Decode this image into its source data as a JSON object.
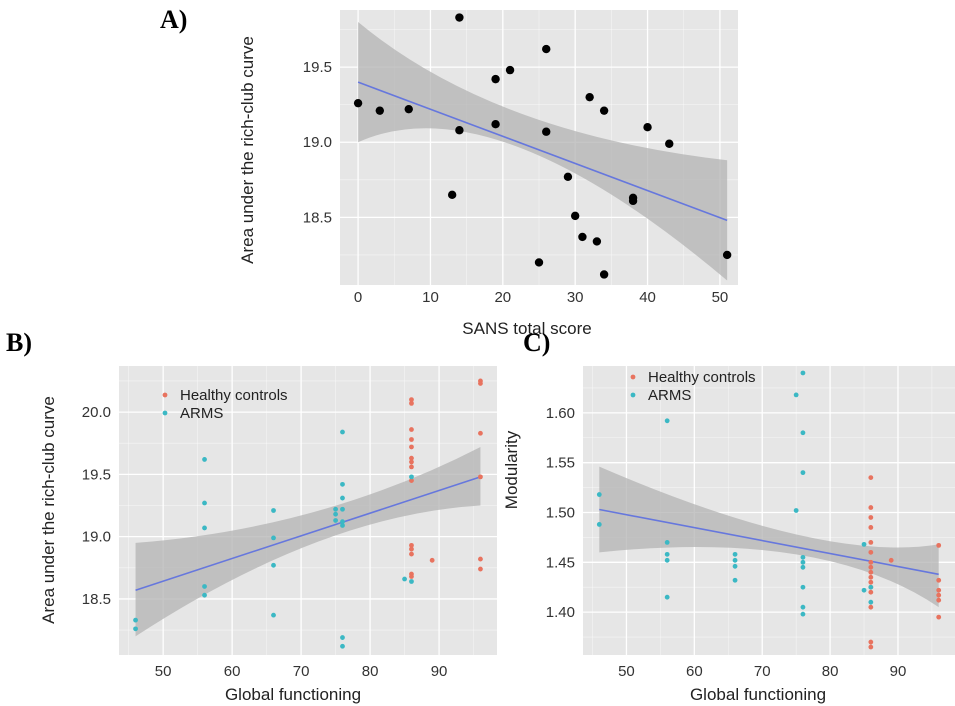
{
  "colors": {
    "panel_bg": "#e6e6e6",
    "grid": "#ffffff",
    "ribbon": "#b3b3b3",
    "fit_line": "#6677dd",
    "black_points": "#000000",
    "healthy": "#e8735f",
    "arms": "#3bb8c4"
  },
  "chart_data": [
    {
      "id": "A",
      "panel_label": "A)",
      "type": "scatter",
      "xlabel": "SANS total score",
      "ylabel": "Area under the rich-club curve",
      "xlim": [
        -2.5,
        52.5
      ],
      "ylim": [
        18.05,
        19.88
      ],
      "xticks": [
        0,
        10,
        20,
        30,
        40,
        50
      ],
      "yticks": [
        18.5,
        19.0,
        19.5
      ],
      "ytick_labels": [
        "18.5",
        "19.0",
        "19.5"
      ],
      "grid": true,
      "series": [
        {
          "color": "black",
          "points": [
            [
              0,
              19.26
            ],
            [
              3,
              19.21
            ],
            [
              7,
              19.22
            ],
            [
              13,
              18.65
            ],
            [
              14,
              19.83
            ],
            [
              14,
              19.08
            ],
            [
              19,
              19.42
            ],
            [
              19,
              19.12
            ],
            [
              21,
              19.48
            ],
            [
              25,
              18.2
            ],
            [
              26,
              19.62
            ],
            [
              26,
              19.07
            ],
            [
              29,
              18.77
            ],
            [
              30,
              18.51
            ],
            [
              31,
              18.37
            ],
            [
              32,
              19.3
            ],
            [
              33,
              18.34
            ],
            [
              34,
              19.21
            ],
            [
              34,
              18.12
            ],
            [
              38,
              18.63
            ],
            [
              38,
              18.61
            ],
            [
              40,
              19.1
            ],
            [
              43,
              18.99
            ],
            [
              51,
              18.25
            ]
          ]
        }
      ],
      "fit": {
        "x": [
          0,
          51
        ],
        "y": [
          19.4,
          18.48
        ],
        "ci": [
          [
            0,
            19.0,
            19.8
          ],
          [
            22,
            18.97,
            19.2
          ],
          [
            51,
            18.08,
            18.88
          ]
        ]
      }
    },
    {
      "id": "B",
      "panel_label": "B)",
      "type": "scatter",
      "xlabel": "Global functioning",
      "ylabel": "Area under the rich-club curve",
      "xlim": [
        43.6,
        98.4
      ],
      "ylim": [
        18.05,
        20.37
      ],
      "xticks": [
        50,
        60,
        70,
        80,
        90
      ],
      "yticks": [
        18.5,
        19.0,
        19.5,
        20.0
      ],
      "ytick_labels": [
        "18.5",
        "19.0",
        "19.5",
        "20.0"
      ],
      "grid": true,
      "legend": {
        "position": "top-left",
        "entries": [
          "Healthy controls",
          "ARMS"
        ]
      },
      "series": [
        {
          "name": "Healthy controls",
          "color": "healthy",
          "points": [
            [
              86,
              20.1
            ],
            [
              86,
              20.07
            ],
            [
              86,
              19.86
            ],
            [
              86,
              19.78
            ],
            [
              86,
              19.72
            ],
            [
              86,
              19.63
            ],
            [
              86,
              19.6
            ],
            [
              86,
              19.56
            ],
            [
              86,
              19.45
            ],
            [
              86,
              18.93
            ],
            [
              86,
              18.9
            ],
            [
              86,
              18.86
            ],
            [
              86,
              18.7
            ],
            [
              86,
              18.68
            ],
            [
              89,
              18.81
            ],
            [
              96,
              20.25
            ],
            [
              96,
              20.23
            ],
            [
              96,
              19.83
            ],
            [
              96,
              19.48
            ],
            [
              96,
              18.82
            ],
            [
              96,
              18.74
            ]
          ]
        },
        {
          "name": "ARMS",
          "color": "arms",
          "points": [
            [
              46,
              18.33
            ],
            [
              46,
              18.26
            ],
            [
              56,
              19.62
            ],
            [
              56,
              19.27
            ],
            [
              56,
              19.07
            ],
            [
              56,
              18.6
            ],
            [
              56,
              18.53
            ],
            [
              66,
              19.21
            ],
            [
              66,
              18.99
            ],
            [
              66,
              18.77
            ],
            [
              66,
              18.37
            ],
            [
              75,
              19.22
            ],
            [
              75,
              19.18
            ],
            [
              75,
              19.13
            ],
            [
              76,
              19.84
            ],
            [
              76,
              19.42
            ],
            [
              76,
              19.31
            ],
            [
              76,
              19.22
            ],
            [
              76,
              19.12
            ],
            [
              76,
              19.09
            ],
            [
              76,
              18.19
            ],
            [
              76,
              18.12
            ],
            [
              85,
              18.66
            ],
            [
              86,
              19.48
            ],
            [
              86,
              18.64
            ]
          ]
        }
      ],
      "fit": {
        "x": [
          46,
          96
        ],
        "y": [
          18.57,
          19.48
        ],
        "ci": [
          [
            46,
            18.2,
            18.95
          ],
          [
            72,
            18.95,
            19.2
          ],
          [
            96,
            19.25,
            19.72
          ]
        ]
      }
    },
    {
      "id": "C",
      "panel_label": "C)",
      "type": "scatter",
      "xlabel": "Global functioning",
      "ylabel": "Modularity",
      "xlim": [
        43.6,
        98.4
      ],
      "ylim": [
        1.357,
        1.647
      ],
      "xticks": [
        50,
        60,
        70,
        80,
        90
      ],
      "yticks": [
        1.4,
        1.45,
        1.5,
        1.55,
        1.6
      ],
      "ytick_labels": [
        "1.40",
        "1.45",
        "1.50",
        "1.55",
        "1.60"
      ],
      "grid": true,
      "legend": {
        "position": "top-left",
        "entries": [
          "Healthy controls",
          "ARMS"
        ]
      },
      "series": [
        {
          "name": "Healthy controls",
          "color": "healthy",
          "points": [
            [
              86,
              1.535
            ],
            [
              86,
              1.505
            ],
            [
              86,
              1.495
            ],
            [
              86,
              1.485
            ],
            [
              86,
              1.47
            ],
            [
              86,
              1.46
            ],
            [
              86,
              1.45
            ],
            [
              86,
              1.445
            ],
            [
              86,
              1.44
            ],
            [
              86,
              1.435
            ],
            [
              86,
              1.43
            ],
            [
              86,
              1.425
            ],
            [
              86,
              1.42
            ],
            [
              86,
              1.405
            ],
            [
              86,
              1.37
            ],
            [
              86,
              1.365
            ],
            [
              89,
              1.452
            ],
            [
              96,
              1.467
            ],
            [
              96,
              1.432
            ],
            [
              96,
              1.422
            ],
            [
              96,
              1.417
            ],
            [
              96,
              1.412
            ],
            [
              96,
              1.395
            ]
          ]
        },
        {
          "name": "ARMS",
          "color": "arms",
          "points": [
            [
              46,
              1.518
            ],
            [
              46,
              1.488
            ],
            [
              56,
              1.592
            ],
            [
              56,
              1.47
            ],
            [
              56,
              1.458
            ],
            [
              56,
              1.452
            ],
            [
              56,
              1.415
            ],
            [
              66,
              1.458
            ],
            [
              66,
              1.452
            ],
            [
              66,
              1.446
            ],
            [
              66,
              1.432
            ],
            [
              75,
              1.618
            ],
            [
              75,
              1.502
            ],
            [
              76,
              1.64
            ],
            [
              76,
              1.58
            ],
            [
              76,
              1.54
            ],
            [
              76,
              1.455
            ],
            [
              76,
              1.45
            ],
            [
              76,
              1.445
            ],
            [
              76,
              1.425
            ],
            [
              76,
              1.405
            ],
            [
              76,
              1.398
            ],
            [
              85,
              1.468
            ],
            [
              85,
              1.422
            ],
            [
              86,
              1.425
            ],
            [
              86,
              1.41
            ]
          ]
        }
      ],
      "fit": {
        "x": [
          46,
          96
        ],
        "y": [
          1.503,
          1.438
        ],
        "ci": [
          [
            46,
            1.46,
            1.546
          ],
          [
            75,
            1.458,
            1.478
          ],
          [
            96,
            1.405,
            1.468
          ]
        ]
      }
    }
  ]
}
